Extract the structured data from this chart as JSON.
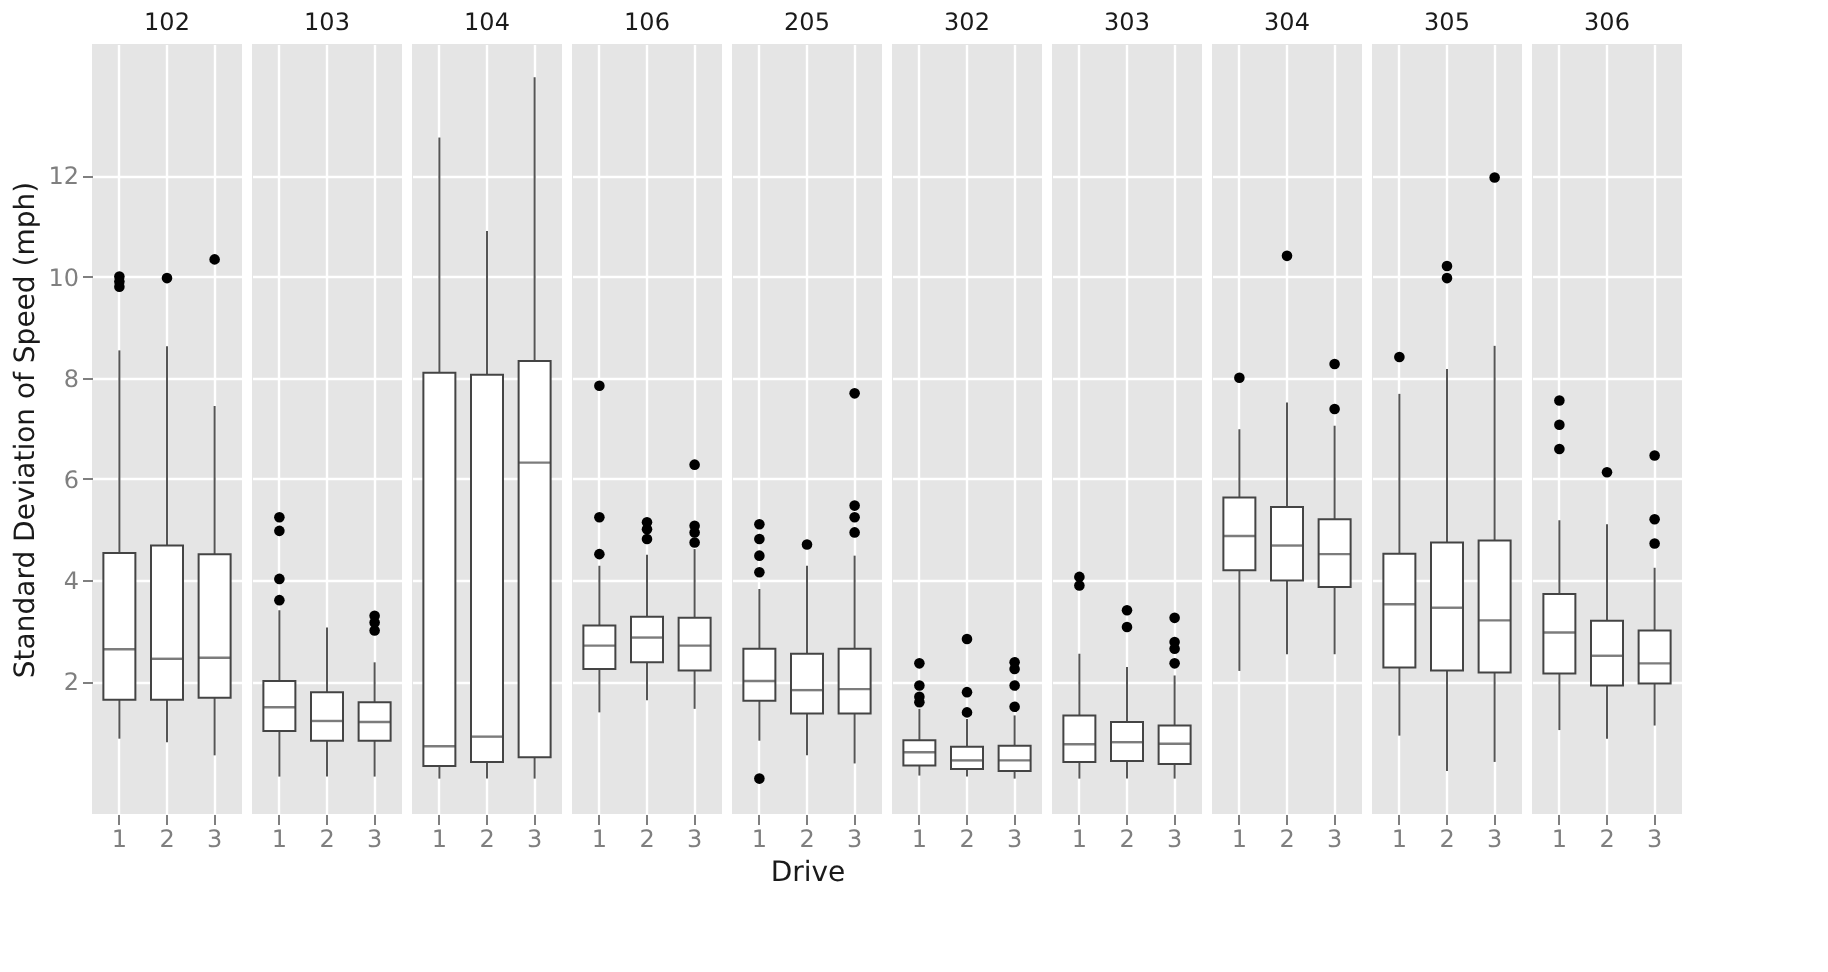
{
  "chart_data": [
    {
      "type": "box",
      "title": "102",
      "ylabel": "Standard Deviation of Speed (mph)",
      "categories": [
        "1",
        "2",
        "3"
      ],
      "ylim": [
        -0.63,
        14.6
      ],
      "yticks": [
        2,
        4,
        6,
        8,
        10,
        12
      ],
      "grid": true,
      "boxes": [
        {
          "low": 0.86,
          "q1": 1.63,
          "median": 2.63,
          "q3": 4.53,
          "high": 8.54,
          "outliers": [
            9.8,
            9.9,
            10.0
          ]
        },
        {
          "low": 0.79,
          "q1": 1.63,
          "median": 2.44,
          "q3": 4.68,
          "high": 8.62,
          "outliers": [
            9.97
          ]
        },
        {
          "low": 0.53,
          "q1": 1.67,
          "median": 2.46,
          "q3": 4.51,
          "high": 7.44,
          "outliers": [
            10.34
          ]
        }
      ]
    },
    {
      "type": "box",
      "title": "103",
      "categories": [
        "1",
        "2",
        "3"
      ],
      "ylim": [
        -0.63,
        14.6
      ],
      "yticks": [
        2,
        4,
        6,
        8,
        10,
        12
      ],
      "grid": true,
      "tick_labels": "x",
      "boxes": [
        {
          "low": 0.11,
          "q1": 1.01,
          "median": 1.48,
          "q3": 2.0,
          "high": 3.4,
          "outliers": [
            3.6,
            4.02,
            4.97,
            5.24
          ]
        },
        {
          "low": 0.11,
          "q1": 0.82,
          "median": 1.21,
          "q3": 1.78,
          "high": 3.06
        },
        {
          "low": 0.11,
          "q1": 0.82,
          "median": 1.19,
          "q3": 1.58,
          "high": 2.37,
          "outliers": [
            3.0,
            3.16,
            3.29
          ]
        }
      ]
    },
    {
      "type": "box",
      "title": "104",
      "categories": [
        "1",
        "2",
        "3"
      ],
      "ylim": [
        -0.63,
        14.6
      ],
      "yticks": [
        2,
        4,
        6,
        8,
        10,
        12
      ],
      "grid": true,
      "tick_labels": "x",
      "boxes": [
        {
          "low": 0.07,
          "q1": 0.32,
          "median": 0.71,
          "q3": 8.1,
          "high": 12.75
        },
        {
          "low": 0.07,
          "q1": 0.4,
          "median": 0.9,
          "q3": 8.06,
          "high": 10.9
        },
        {
          "low": 0.07,
          "q1": 0.49,
          "median": 6.32,
          "q3": 8.33,
          "high": 13.94
        }
      ]
    },
    {
      "type": "box",
      "title": "106",
      "categories": [
        "1",
        "2",
        "3"
      ],
      "ylim": [
        -0.63,
        14.6
      ],
      "yticks": [
        2,
        4,
        6,
        8,
        10,
        12
      ],
      "grid": true,
      "tick_labels": "x",
      "boxes": [
        {
          "low": 1.38,
          "q1": 2.24,
          "median": 2.7,
          "q3": 3.1,
          "high": 4.28,
          "outliers": [
            4.51,
            5.24,
            7.84
          ]
        },
        {
          "low": 1.62,
          "q1": 2.37,
          "median": 2.86,
          "q3": 3.27,
          "high": 4.5,
          "outliers": [
            4.81,
            5.0,
            5.14
          ]
        },
        {
          "low": 1.45,
          "q1": 2.21,
          "median": 2.7,
          "q3": 3.25,
          "high": 4.61,
          "outliers": [
            4.74,
            4.94,
            5.07,
            6.28
          ]
        }
      ]
    },
    {
      "type": "box",
      "title": "205",
      "xlabel": "Drive",
      "categories": [
        "1",
        "2",
        "3"
      ],
      "ylim": [
        -0.63,
        14.6
      ],
      "yticks": [
        2,
        4,
        6,
        8,
        10,
        12
      ],
      "grid": true,
      "tick_labels": "x",
      "boxes": [
        {
          "low": 0.82,
          "q1": 1.61,
          "median": 2.0,
          "q3": 2.64,
          "high": 3.82,
          "outliers": [
            0.07,
            4.15,
            4.48,
            4.81,
            5.1
          ]
        },
        {
          "low": 0.53,
          "q1": 1.36,
          "median": 1.82,
          "q3": 2.54,
          "high": 4.28,
          "outliers": [
            4.7
          ]
        },
        {
          "low": 0.37,
          "q1": 1.36,
          "median": 1.84,
          "q3": 2.64,
          "high": 4.48,
          "outliers": [
            4.94,
            5.24,
            5.47,
            7.69
          ]
        }
      ]
    },
    {
      "type": "box",
      "title": "302",
      "categories": [
        "1",
        "2",
        "3"
      ],
      "ylim": [
        -0.63,
        14.6
      ],
      "yticks": [
        2,
        4,
        6,
        8,
        10,
        12
      ],
      "grid": true,
      "tick_labels": "x",
      "boxes": [
        {
          "low": 0.13,
          "q1": 0.33,
          "median": 0.59,
          "q3": 0.83,
          "high": 1.45,
          "outliers": [
            1.58,
            1.69,
            1.91,
            2.35
          ]
        },
        {
          "low": 0.11,
          "q1": 0.26,
          "median": 0.43,
          "q3": 0.7,
          "high": 1.25,
          "outliers": [
            1.38,
            1.78,
            2.83
          ]
        },
        {
          "low": 0.07,
          "q1": 0.22,
          "median": 0.43,
          "q3": 0.72,
          "high": 1.32,
          "outliers": [
            1.49,
            1.91,
            2.24,
            2.37
          ]
        }
      ]
    },
    {
      "type": "box",
      "title": "303",
      "categories": [
        "1",
        "2",
        "3"
      ],
      "ylim": [
        -0.63,
        14.6
      ],
      "yticks": [
        2,
        4,
        6,
        8,
        10,
        12
      ],
      "grid": true,
      "tick_labels": "x",
      "boxes": [
        {
          "low": 0.07,
          "q1": 0.4,
          "median": 0.75,
          "q3": 1.32,
          "high": 2.54,
          "outliers": [
            3.89,
            4.06
          ]
        },
        {
          "low": 0.07,
          "q1": 0.42,
          "median": 0.79,
          "q3": 1.19,
          "high": 2.28,
          "outliers": [
            3.07,
            3.4
          ]
        },
        {
          "low": 0.07,
          "q1": 0.36,
          "median": 0.76,
          "q3": 1.12,
          "high": 2.11,
          "outliers": [
            2.35,
            2.64,
            2.77,
            3.25
          ]
        }
      ]
    },
    {
      "type": "box",
      "title": "304",
      "categories": [
        "1",
        "2",
        "3"
      ],
      "ylim": [
        -0.63,
        14.6
      ],
      "yticks": [
        2,
        4,
        6,
        8,
        10,
        12
      ],
      "grid": true,
      "tick_labels": "x",
      "boxes": [
        {
          "low": 2.2,
          "q1": 4.19,
          "median": 4.87,
          "q3": 5.63,
          "high": 6.98,
          "outliers": [
            8.0
          ]
        },
        {
          "low": 2.53,
          "q1": 3.99,
          "median": 4.68,
          "q3": 5.44,
          "high": 7.51,
          "outliers": [
            10.41
          ]
        },
        {
          "low": 2.53,
          "q1": 3.86,
          "median": 4.51,
          "q3": 5.2,
          "high": 7.05,
          "outliers": [
            7.38,
            8.27
          ]
        }
      ]
    },
    {
      "type": "box",
      "title": "305",
      "categories": [
        "1",
        "2",
        "3"
      ],
      "ylim": [
        -0.63,
        14.6
      ],
      "yticks": [
        2,
        4,
        6,
        8,
        10,
        12
      ],
      "grid": true,
      "tick_labels": "x",
      "boxes": [
        {
          "low": 0.92,
          "q1": 2.27,
          "median": 3.52,
          "q3": 4.52,
          "high": 7.68,
          "outliers": [
            8.41
          ]
        },
        {
          "low": 0.22,
          "q1": 2.21,
          "median": 3.45,
          "q3": 4.74,
          "high": 8.17,
          "outliers": [
            9.97,
            10.21
          ]
        },
        {
          "low": 0.4,
          "q1": 2.17,
          "median": 3.2,
          "q3": 4.78,
          "high": 8.63,
          "outliers": [
            11.96
          ]
        }
      ]
    },
    {
      "type": "box",
      "title": "306",
      "categories": [
        "1",
        "2",
        "3"
      ],
      "ylim": [
        -0.63,
        14.6
      ],
      "yticks": [
        2,
        4,
        6,
        8,
        10,
        12
      ],
      "grid": true,
      "tick_labels": "x",
      "boxes": [
        {
          "low": 1.03,
          "q1": 2.15,
          "median": 2.96,
          "q3": 3.72,
          "high": 5.18,
          "outliers": [
            6.59,
            7.07,
            7.55
          ]
        },
        {
          "low": 0.86,
          "q1": 1.91,
          "median": 2.5,
          "q3": 3.19,
          "high": 5.1,
          "outliers": [
            6.13
          ]
        },
        {
          "low": 1.12,
          "q1": 1.95,
          "median": 2.35,
          "q3": 3.0,
          "high": 4.24,
          "outliers": [
            4.72,
            5.2,
            6.46
          ]
        }
      ]
    }
  ]
}
